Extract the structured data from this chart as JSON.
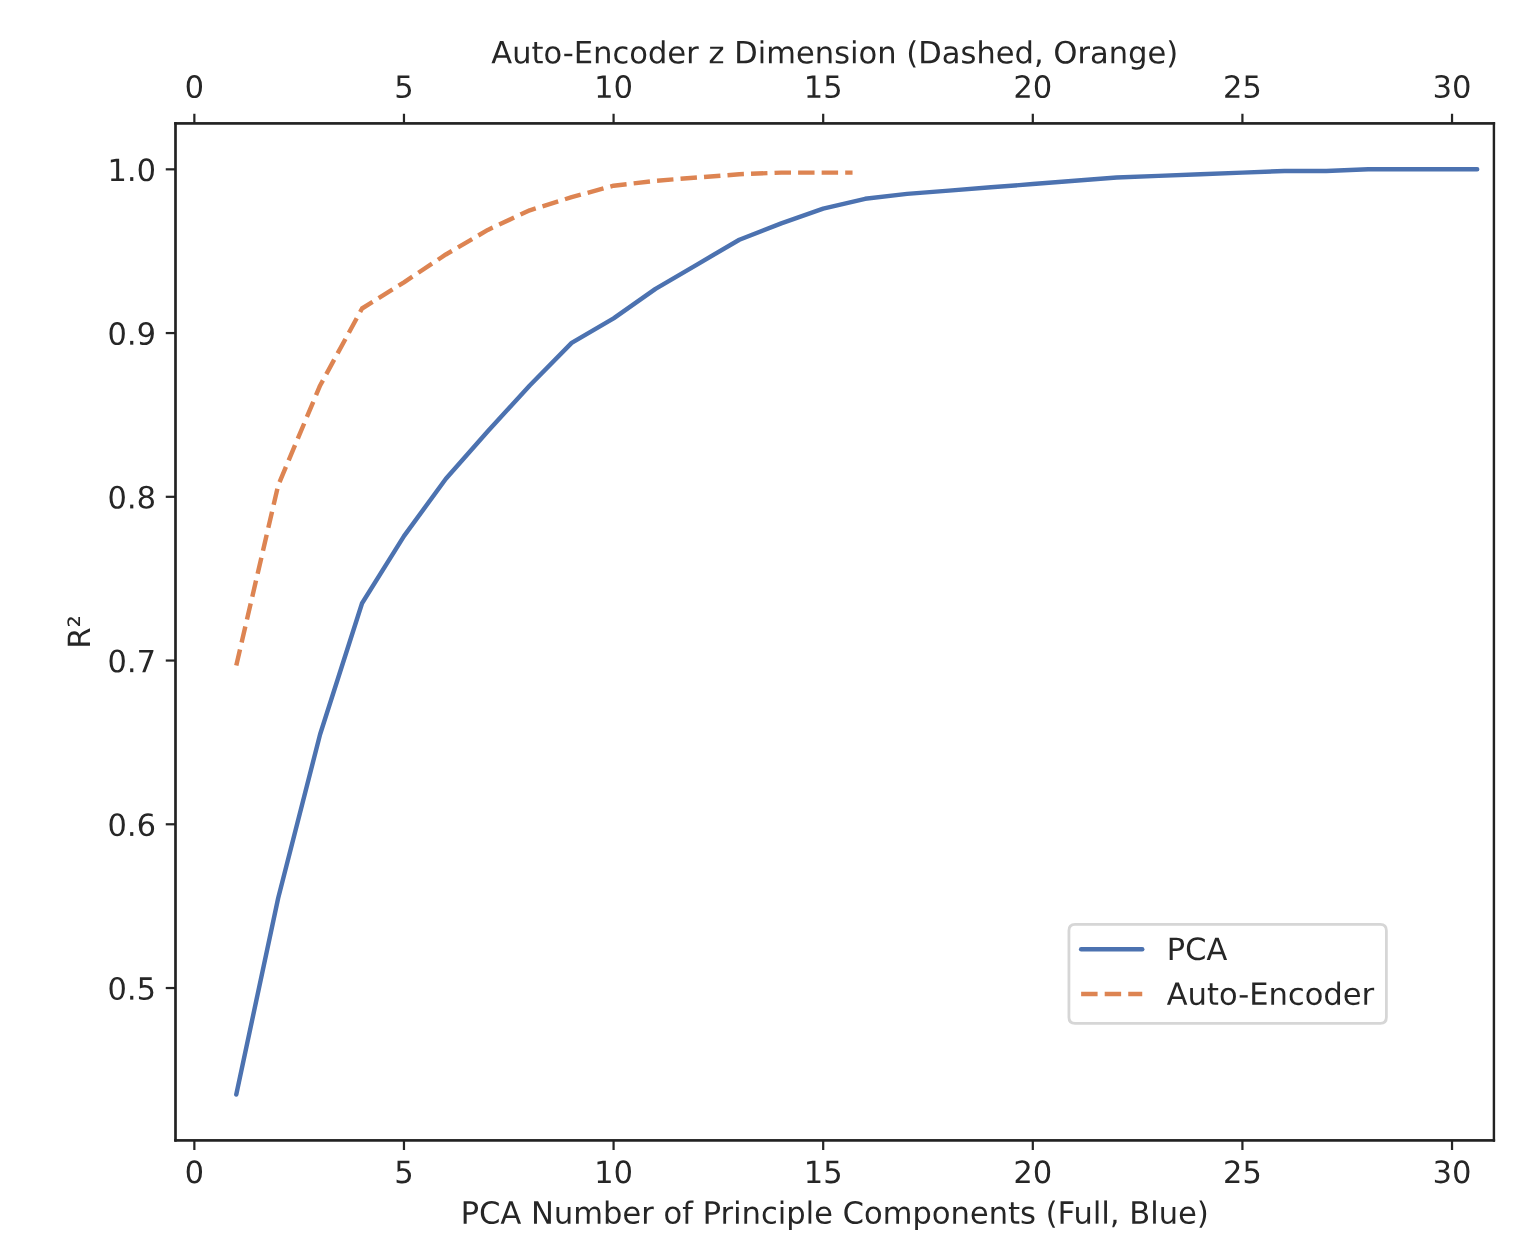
{
  "chart_data": {
    "type": "line",
    "xlabel": "PCA Number of Principle Components (Full, Blue)",
    "x2label": "Auto-Encoder z Dimension (Dashed, Orange)",
    "ylabel": "R²",
    "xlim": [
      -0.45,
      31.0
    ],
    "xticks": [
      0,
      5,
      10,
      15,
      20,
      25,
      30
    ],
    "x2lim": [
      -0.45,
      31.0
    ],
    "x2ticks": [
      0,
      5,
      10,
      15,
      20,
      25,
      30
    ],
    "ylim": [
      0.407,
      1.028
    ],
    "yticks": [
      0.5,
      0.6,
      0.7,
      0.8,
      0.9,
      {
        "value": 1.0,
        "label": "1.0"
      }
    ],
    "grid": false,
    "legend": "lower right",
    "series": [
      {
        "name": "PCA",
        "color": "#4c72b0",
        "line_style": "solid",
        "x": [
          1,
          2,
          3,
          4,
          5,
          6,
          7,
          8,
          9,
          10,
          11,
          12,
          13,
          14,
          15,
          16,
          17,
          18,
          19,
          20,
          21,
          22,
          23,
          24,
          25,
          26,
          27,
          28,
          29,
          30,
          30.6
        ],
        "values": [
          0.435,
          0.555,
          0.655,
          0.735,
          0.776,
          0.811,
          0.84,
          0.868,
          0.894,
          0.909,
          0.927,
          0.942,
          0.957,
          0.967,
          0.976,
          0.982,
          0.985,
          0.987,
          0.989,
          0.991,
          0.993,
          0.995,
          0.996,
          0.997,
          0.998,
          0.999,
          0.999,
          1.0,
          1.0,
          1.0,
          1.0
        ]
      },
      {
        "name": "Auto-Encoder",
        "color": "#dd8452",
        "line_style": "dashed",
        "axis": "x2",
        "x": [
          1,
          2,
          3,
          4,
          5,
          6,
          7,
          8,
          9,
          10,
          11,
          12,
          13,
          14,
          15,
          15.7
        ],
        "values": [
          0.697,
          0.807,
          0.868,
          0.915,
          0.931,
          0.948,
          0.963,
          0.975,
          0.983,
          0.99,
          0.993,
          0.995,
          0.997,
          0.998,
          0.998,
          0.998
        ]
      }
    ]
  }
}
